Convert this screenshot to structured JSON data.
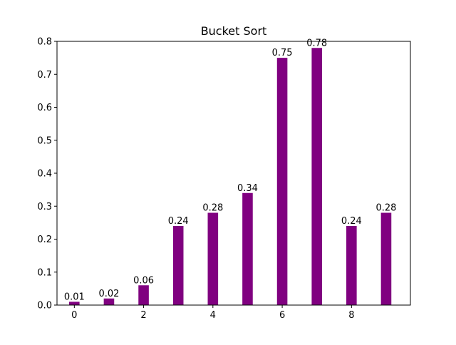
{
  "chart_data": {
    "type": "bar",
    "title": "Bucket Sort",
    "xlabel": "",
    "ylabel": "",
    "x": [
      0,
      1,
      2,
      3,
      4,
      5,
      6,
      7,
      8,
      9
    ],
    "values": [
      0.01,
      0.02,
      0.06,
      0.24,
      0.28,
      0.34,
      0.75,
      0.78,
      0.24,
      0.28
    ],
    "data_labels": [
      "0.01",
      "0.02",
      "0.06",
      "0.24",
      "0.28",
      "0.34",
      "0.75",
      "0.78",
      "0.24",
      "0.28"
    ],
    "xticks": [
      0,
      2,
      4,
      6,
      8
    ],
    "xtick_labels": [
      "0",
      "2",
      "4",
      "6",
      "8"
    ],
    "yticks": [
      0.0,
      0.1,
      0.2,
      0.3,
      0.4,
      0.5,
      0.6,
      0.7,
      0.8
    ],
    "ytick_labels": [
      "0.0",
      "0.1",
      "0.2",
      "0.3",
      "0.4",
      "0.5",
      "0.6",
      "0.7",
      "0.8"
    ],
    "xlim": [
      -0.5,
      9.7
    ],
    "ylim": [
      0,
      0.8
    ],
    "bar_width": 0.3,
    "bar_color": "#800080",
    "grid": false,
    "legend": "none"
  }
}
